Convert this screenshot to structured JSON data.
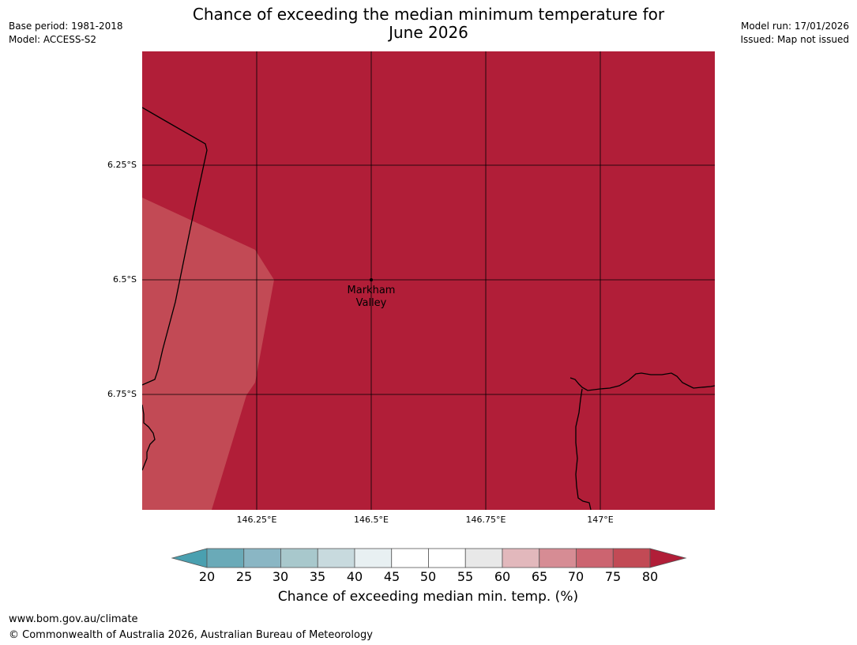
{
  "header": {
    "base_period": "Base period: 1981-2018",
    "model": "Model: ACCESS-S2",
    "model_run": "Model run: 17/01/2026",
    "issued": "Issued: Map not issued",
    "title_line1": "Chance of exceeding the median minimum temperature for",
    "title_line2": "June 2026"
  },
  "map": {
    "lat_labels": [
      "6.25°S",
      "6.5°S",
      "6.75°S"
    ],
    "lon_labels": [
      "146.25°E",
      "146.5°E",
      "146.75°E",
      "147°E"
    ],
    "place": {
      "line1": "Markham",
      "line2": "Valley"
    },
    "colors": {
      "band_75_80": "#c24a55",
      "band_80_plus": "#b11e38",
      "coastline": "#000000",
      "gridline": "#000000"
    }
  },
  "colorbar": {
    "ticks": [
      "20",
      "25",
      "30",
      "35",
      "40",
      "45",
      "50",
      "55",
      "60",
      "65",
      "70",
      "75",
      "80"
    ],
    "colors": [
      "#4aa0b0",
      "#6aaab8",
      "#8ab6c4",
      "#a8c8cc",
      "#c8dade",
      "#e8f0f2",
      "#ffffff",
      "#ffffff",
      "#e8e8e8",
      "#e2b8bc",
      "#d68c94",
      "#cc6470",
      "#c24a55",
      "#b11e38"
    ],
    "label": "Chance of exceeding median min. temp. (%)"
  },
  "footer": {
    "url": "www.bom.gov.au/climate",
    "copyright": "© Commonwealth of Australia 2026, Australian Bureau of Meteorology"
  }
}
